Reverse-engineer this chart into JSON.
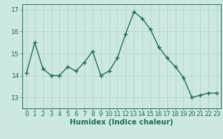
{
  "x": [
    0,
    1,
    2,
    3,
    4,
    5,
    6,
    7,
    8,
    9,
    10,
    11,
    12,
    13,
    14,
    15,
    16,
    17,
    18,
    19,
    20,
    21,
    22,
    23
  ],
  "y": [
    14.1,
    15.5,
    14.3,
    14.0,
    14.0,
    14.4,
    14.2,
    14.6,
    15.1,
    14.0,
    14.2,
    14.8,
    15.9,
    16.9,
    16.6,
    16.1,
    15.3,
    14.8,
    14.4,
    13.9,
    13.0,
    13.1,
    13.2,
    13.2
  ],
  "bg_color": "#cce8e0",
  "line_color": "#1a6b5a",
  "grid_color": "#b0d0c8",
  "tick_color": "#1a6b5a",
  "xlabel": "Humidex (Indice chaleur)",
  "ylim": [
    12.5,
    17.25
  ],
  "xlim": [
    -0.5,
    23.5
  ],
  "yticks": [
    13,
    14,
    15,
    16,
    17
  ],
  "xticks": [
    0,
    1,
    2,
    3,
    4,
    5,
    6,
    7,
    8,
    9,
    10,
    11,
    12,
    13,
    14,
    15,
    16,
    17,
    18,
    19,
    20,
    21,
    22,
    23
  ],
  "xlabel_fontsize": 7.5,
  "tick_fontsize": 6.5,
  "linewidth": 1.0,
  "markersize": 2.2
}
